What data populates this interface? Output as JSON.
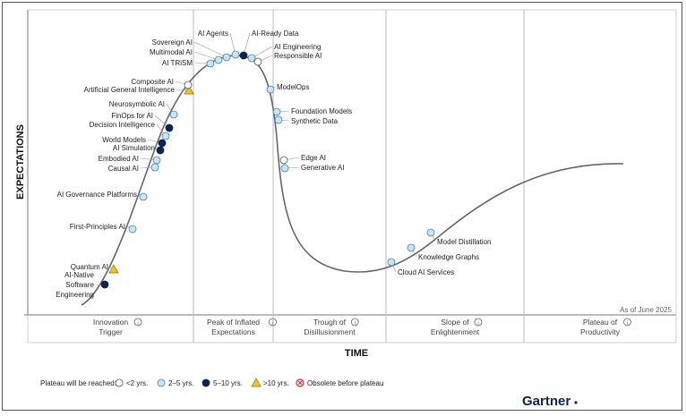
{
  "chart_data": {
    "type": "scatter",
    "title": "",
    "xlabel": "TIME",
    "ylabel": "EXPECTATIONS",
    "as_of": "As of June 2025",
    "phases": [
      [
        "Innovation",
        "Trigger"
      ],
      [
        "Peak of Inflated",
        "Expectations"
      ],
      [
        "Trough of",
        "Disillusionment"
      ],
      [
        "Slope of",
        "Enlightenment"
      ],
      [
        "Plateau of",
        "Productivity"
      ]
    ],
    "legend": {
      "title": "Plateau will be reached:",
      "items": [
        {
          "label": "<2 yrs.",
          "key": "lt2"
        },
        {
          "label": "2–5 yrs.",
          "key": "2to5"
        },
        {
          "label": "5–10 yrs.",
          "key": "5to10"
        },
        {
          "label": ">10 yrs.",
          "key": "gt10"
        },
        {
          "label": "Obsolete before plateau",
          "key": "obsolete"
        }
      ]
    },
    "colors": {
      "lt2": "#ffffff",
      "2to5": "#c9e4f2",
      "5to10": "#0b2450",
      "gt10": "#f2c41e",
      "obsolete": "#d62b2b",
      "curve": "#666666",
      "marker_edge": "#3f83b8"
    },
    "points": [
      {
        "label": "AI-Native Software Engineering",
        "cat": "5to10"
      },
      {
        "label": "Quantum AI",
        "cat": "gt10"
      },
      {
        "label": "First-Principles AI",
        "cat": "2to5"
      },
      {
        "label": "AI Governance Platforms",
        "cat": "2to5"
      },
      {
        "label": "Causal AI",
        "cat": "2to5"
      },
      {
        "label": "Embodied AI",
        "cat": "2to5"
      },
      {
        "label": "AI Simulation",
        "cat": "5to10"
      },
      {
        "label": "World Models",
        "cat": "5to10"
      },
      {
        "label": "Decision Intelligence",
        "cat": "2to5"
      },
      {
        "label": "FinOps for AI",
        "cat": "5to10"
      },
      {
        "label": "Neurosymbolic AI",
        "cat": "2to5"
      },
      {
        "label": "Artificial General Intelligence",
        "cat": "gt10"
      },
      {
        "label": "Composite AI",
        "cat": "lt2"
      },
      {
        "label": "AI TRiSM",
        "cat": "2to5"
      },
      {
        "label": "Multimodal AI",
        "cat": "2to5"
      },
      {
        "label": "Sovereign AI",
        "cat": "2to5"
      },
      {
        "label": "AI Agents",
        "cat": "2to5"
      },
      {
        "label": "AI-Ready Data",
        "cat": "5to10"
      },
      {
        "label": "AI Engineering",
        "cat": "2to5"
      },
      {
        "label": "Responsible AI",
        "cat": "lt2"
      },
      {
        "label": "ModelOps",
        "cat": "2to5"
      },
      {
        "label": "Foundation Models",
        "cat": "2to5"
      },
      {
        "label": "Synthetic Data",
        "cat": "2to5"
      },
      {
        "label": "Edge AI",
        "cat": "lt2"
      },
      {
        "label": "Generative AI",
        "cat": "2to5"
      },
      {
        "label": "Cloud AI Services",
        "cat": "2to5"
      },
      {
        "label": "Knowledge Graphs",
        "cat": "2to5"
      },
      {
        "label": "Model Distillation",
        "cat": "2to5"
      }
    ]
  },
  "brand": "Gartner"
}
